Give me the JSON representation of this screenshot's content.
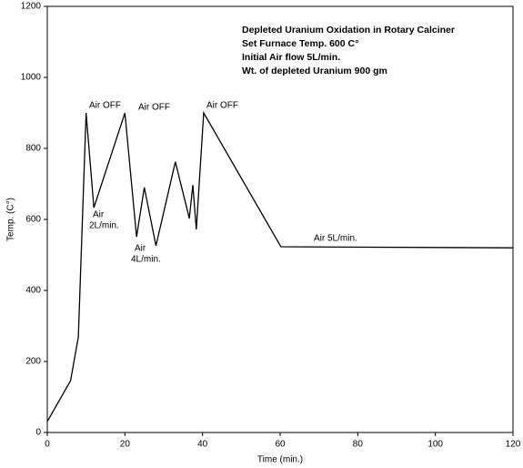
{
  "chart_data": {
    "type": "line",
    "text_block": [
      "Depleted Uranium Oxidation in Rotary Calciner",
      "Set Furnace Temp. 600 C°",
      "Initial Air flow 5L/min.",
      "Wt. of depleted Uranium 900 gm"
    ],
    "x_label": "Time (min.)",
    "y_label": "Temp. (C°)",
    "x": [
      0,
      6,
      8,
      10,
      12,
      20,
      23,
      25,
      28,
      33,
      36.6,
      37.5,
      38.4,
      40.3,
      60.2,
      120
    ],
    "values": [
      31,
      146,
      269,
      900,
      633,
      900,
      551,
      690,
      526,
      762,
      603,
      697,
      572,
      900,
      523,
      520
    ],
    "color": "#000000",
    "annotations": [
      "Air OFF",
      "Air OFF",
      "Air OFF",
      [
        "Air",
        "2L/min."
      ],
      [
        "Air",
        "4L/min."
      ],
      "Air  5L/min."
    ],
    "xlim": [
      0,
      120
    ],
    "xticks": [
      0,
      20,
      40,
      60,
      80,
      100,
      120
    ],
    "ylim": [
      0,
      1200
    ],
    "yticks": [
      0,
      200,
      400,
      600,
      800,
      1000,
      1200
    ],
    "grid": false
  }
}
